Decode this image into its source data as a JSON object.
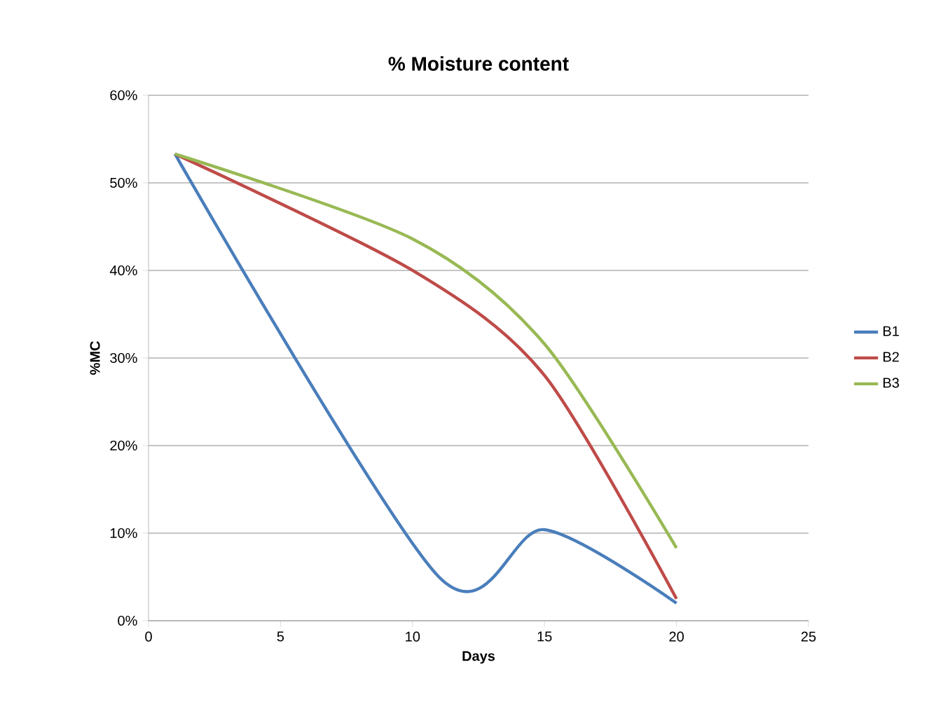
{
  "chart_data": {
    "type": "line",
    "title": "% Moisture  content",
    "xlabel": "Days",
    "ylabel": "%MC",
    "xlim": [
      0,
      25
    ],
    "xticks": [
      0,
      5,
      10,
      15,
      20,
      25
    ],
    "ylim": [
      0,
      60
    ],
    "yticks": [
      {
        "value": 0,
        "label": "0%"
      },
      {
        "value": 10,
        "label": "10%"
      },
      {
        "value": 20,
        "label": "20%"
      },
      {
        "value": 30,
        "label": "30%"
      },
      {
        "value": 40,
        "label": "40%"
      },
      {
        "value": 50,
        "label": "50%"
      },
      {
        "value": 60,
        "label": "60%"
      }
    ],
    "grid": "y",
    "legend": "right",
    "marker": "none",
    "line_style": "solid",
    "series": [
      {
        "name": "B1",
        "color": "#4a7ebb",
        "x": [
          1,
          11,
          15,
          20
        ],
        "values": [
          53.3,
          5,
          10.4,
          2
        ]
      },
      {
        "name": "B2",
        "color": "#be4b48",
        "x": [
          1,
          10,
          15,
          20
        ],
        "values": [
          53.3,
          40,
          28,
          2.5
        ]
      },
      {
        "name": "B3",
        "color": "#98b954",
        "x": [
          1,
          10,
          15,
          20
        ],
        "values": [
          53.3,
          43.6,
          31.6,
          8.3
        ]
      }
    ]
  }
}
